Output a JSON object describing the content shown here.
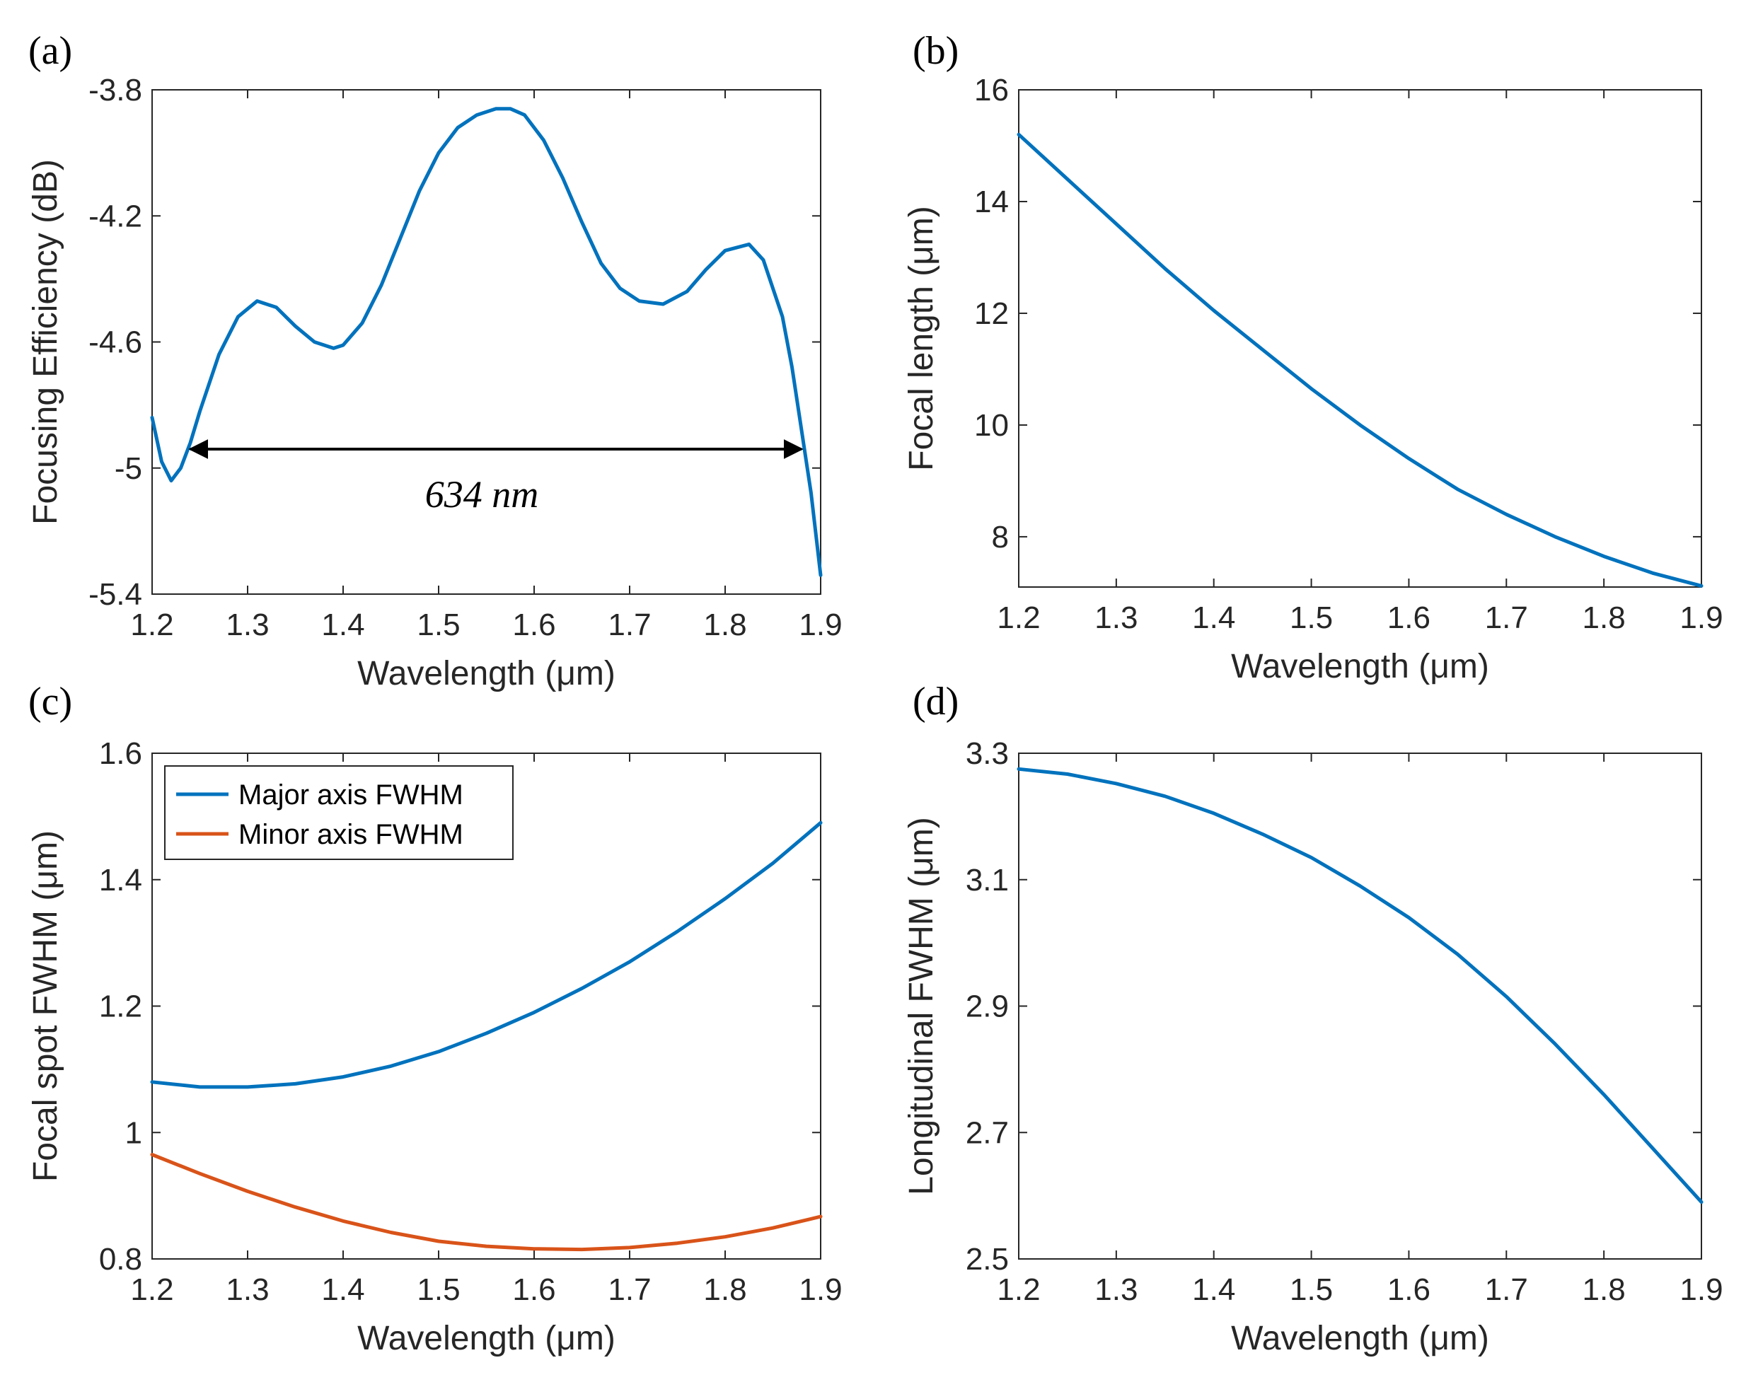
{
  "chart_data": [
    {
      "panel": "(a)",
      "type": "line",
      "xlabel": "Wavelength (μm)",
      "ylabel": "Focusing Efficiency (dB)",
      "xlim": [
        1.2,
        1.9
      ],
      "ylim": [
        -5.4,
        -3.8
      ],
      "xticks": [
        "1.2",
        "1.3",
        "1.4",
        "1.5",
        "1.6",
        "1.7",
        "1.8",
        "1.9"
      ],
      "yticks": [
        "-5.4",
        "-5",
        "-4.6",
        "-4.2",
        "-3.8"
      ],
      "annotation": {
        "text": "634 nm",
        "x_start": 1.24,
        "x_end": 1.88,
        "y": -4.94
      },
      "series": [
        {
          "color": "#0072BD",
          "x": [
            1.2,
            1.21,
            1.22,
            1.23,
            1.24,
            1.25,
            1.27,
            1.29,
            1.31,
            1.33,
            1.35,
            1.37,
            1.39,
            1.4,
            1.42,
            1.44,
            1.46,
            1.48,
            1.5,
            1.52,
            1.54,
            1.56,
            1.575,
            1.59,
            1.61,
            1.63,
            1.65,
            1.67,
            1.69,
            1.71,
            1.735,
            1.76,
            1.78,
            1.8,
            1.825,
            1.84,
            1.86,
            1.87,
            1.88,
            1.89,
            1.9
          ],
          "y": [
            -4.84,
            -4.98,
            -5.04,
            -5.0,
            -4.92,
            -4.82,
            -4.64,
            -4.52,
            -4.47,
            -4.49,
            -4.55,
            -4.6,
            -4.62,
            -4.61,
            -4.54,
            -4.42,
            -4.27,
            -4.12,
            -4.0,
            -3.92,
            -3.88,
            -3.86,
            -3.86,
            -3.88,
            -3.96,
            -4.08,
            -4.22,
            -4.35,
            -4.43,
            -4.47,
            -4.48,
            -4.44,
            -4.37,
            -4.31,
            -4.29,
            -4.34,
            -4.52,
            -4.68,
            -4.88,
            -5.08,
            -5.34
          ]
        }
      ]
    },
    {
      "panel": "(b)",
      "type": "line",
      "xlabel": "Wavelength (μm)",
      "ylabel": "Focal length (μm)",
      "xlim": [
        1.2,
        1.9
      ],
      "ylim": [
        7.1,
        16
      ],
      "xticks": [
        "1.2",
        "1.3",
        "1.4",
        "1.5",
        "1.6",
        "1.7",
        "1.8",
        "1.9"
      ],
      "yticks": [
        "8",
        "10",
        "12",
        "14",
        "16"
      ],
      "series": [
        {
          "color": "#0072BD",
          "x": [
            1.2,
            1.25,
            1.3,
            1.35,
            1.4,
            1.45,
            1.5,
            1.55,
            1.6,
            1.65,
            1.7,
            1.75,
            1.8,
            1.85,
            1.9
          ],
          "y": [
            15.2,
            14.4,
            13.6,
            12.8,
            12.05,
            11.35,
            10.65,
            10.0,
            9.4,
            8.85,
            8.4,
            8.0,
            7.65,
            7.35,
            7.12
          ]
        }
      ]
    },
    {
      "panel": "(c)",
      "type": "line",
      "xlabel": "Wavelength (μm)",
      "ylabel": "Focal spot FWHM (μm)",
      "xlim": [
        1.2,
        1.9
      ],
      "ylim": [
        0.8,
        1.6
      ],
      "xticks": [
        "1.2",
        "1.3",
        "1.4",
        "1.5",
        "1.6",
        "1.7",
        "1.8",
        "1.9"
      ],
      "yticks": [
        "0.8",
        "1",
        "1.2",
        "1.4",
        "1.6"
      ],
      "legend": "top-left",
      "series": [
        {
          "name": "Major axis FWHM",
          "color": "#0072BD",
          "x": [
            1.2,
            1.25,
            1.3,
            1.35,
            1.4,
            1.45,
            1.5,
            1.55,
            1.6,
            1.65,
            1.7,
            1.75,
            1.8,
            1.85,
            1.9
          ],
          "y": [
            1.08,
            1.072,
            1.072,
            1.077,
            1.088,
            1.105,
            1.128,
            1.157,
            1.19,
            1.228,
            1.27,
            1.318,
            1.37,
            1.426,
            1.49
          ]
        },
        {
          "name": "Minor axis FWHM",
          "color": "#D95319",
          "x": [
            1.2,
            1.25,
            1.3,
            1.35,
            1.4,
            1.45,
            1.5,
            1.55,
            1.6,
            1.65,
            1.7,
            1.75,
            1.8,
            1.85,
            1.9
          ],
          "y": [
            0.965,
            0.935,
            0.907,
            0.882,
            0.86,
            0.842,
            0.828,
            0.82,
            0.816,
            0.815,
            0.818,
            0.825,
            0.835,
            0.849,
            0.867
          ]
        }
      ]
    },
    {
      "panel": "(d)",
      "type": "line",
      "xlabel": "Wavelength (μm)",
      "ylabel": "Longitudinal FWHM (μm)",
      "xlim": [
        1.2,
        1.9
      ],
      "ylim": [
        2.5,
        3.3
      ],
      "xticks": [
        "1.2",
        "1.3",
        "1.4",
        "1.5",
        "1.6",
        "1.7",
        "1.8",
        "1.9"
      ],
      "yticks": [
        "2.5",
        "2.7",
        "2.9",
        "3.1",
        "3.3"
      ],
      "series": [
        {
          "color": "#0072BD",
          "x": [
            1.2,
            1.25,
            1.3,
            1.35,
            1.4,
            1.45,
            1.5,
            1.55,
            1.6,
            1.65,
            1.7,
            1.75,
            1.8,
            1.85,
            1.9
          ],
          "y": [
            3.275,
            3.267,
            3.252,
            3.232,
            3.205,
            3.172,
            3.135,
            3.09,
            3.04,
            2.982,
            2.915,
            2.84,
            2.76,
            2.675,
            2.59
          ]
        }
      ]
    }
  ]
}
